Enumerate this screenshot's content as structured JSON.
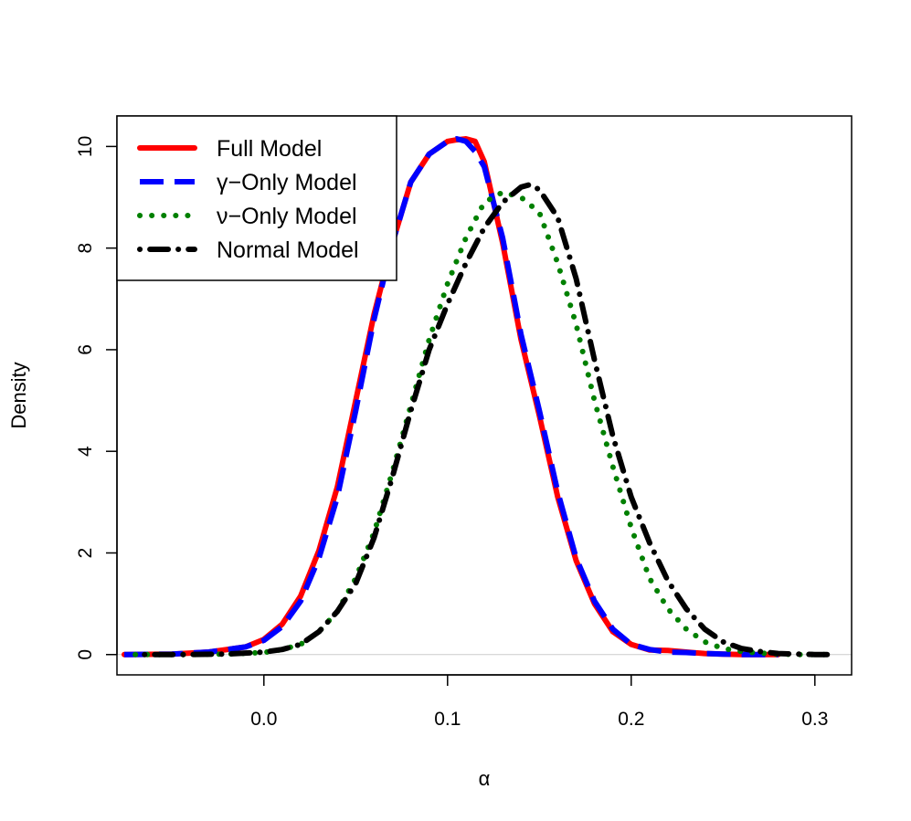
{
  "chart_data": {
    "type": "line",
    "title": "",
    "xlabel": "α",
    "ylabel": "Density",
    "xlim": [
      -0.08,
      0.32
    ],
    "ylim": [
      -0.4,
      10.6
    ],
    "x_ticks": [
      "0.0",
      "0.1",
      "0.2",
      "0.3"
    ],
    "y_ticks": [
      "0",
      "2",
      "4",
      "6",
      "8",
      "10"
    ],
    "grid": false,
    "legend_position": "top-left",
    "series": [
      {
        "name": "Full Model",
        "color": "#ff0000",
        "style": "solid",
        "x": [
          -0.076,
          -0.05,
          -0.03,
          -0.01,
          0.0,
          0.01,
          0.02,
          0.03,
          0.04,
          0.05,
          0.06,
          0.07,
          0.08,
          0.09,
          0.1,
          0.105,
          0.11,
          0.115,
          0.12,
          0.13,
          0.14,
          0.15,
          0.16,
          0.17,
          0.18,
          0.19,
          0.2,
          0.21,
          0.22,
          0.23,
          0.24,
          0.25,
          0.26,
          0.27,
          0.28
        ],
        "y": [
          0.0,
          0.01,
          0.05,
          0.15,
          0.3,
          0.6,
          1.15,
          2.05,
          3.3,
          5.0,
          6.7,
          8.1,
          9.3,
          9.85,
          10.1,
          10.13,
          10.15,
          10.1,
          9.7,
          8.1,
          6.2,
          4.7,
          3.1,
          1.85,
          1.0,
          0.45,
          0.2,
          0.09,
          0.08,
          0.05,
          0.02,
          0.01,
          0.0,
          0.0,
          0.0
        ]
      },
      {
        "name": "γ−Only Model",
        "color": "#0000ff",
        "style": "dashed",
        "x": [
          -0.076,
          -0.05,
          -0.03,
          -0.01,
          0.0,
          0.01,
          0.02,
          0.03,
          0.04,
          0.05,
          0.06,
          0.07,
          0.08,
          0.09,
          0.1,
          0.105,
          0.11,
          0.115,
          0.12,
          0.13,
          0.14,
          0.15,
          0.16,
          0.17,
          0.18,
          0.19,
          0.2,
          0.21,
          0.22,
          0.23,
          0.24,
          0.25,
          0.26,
          0.27,
          0.28
        ],
        "y": [
          0.0,
          0.01,
          0.05,
          0.15,
          0.28,
          0.55,
          1.05,
          1.9,
          3.1,
          4.8,
          6.6,
          8.1,
          9.3,
          9.85,
          10.1,
          10.15,
          10.1,
          9.9,
          9.6,
          8.2,
          6.3,
          4.8,
          3.2,
          1.9,
          1.05,
          0.5,
          0.2,
          0.1,
          0.05,
          0.04,
          0.02,
          0.01,
          0.0,
          0.0,
          0.0
        ]
      },
      {
        "name": "ν−Only Model",
        "color": "#008000",
        "style": "dotted",
        "x": [
          -0.07,
          -0.04,
          -0.02,
          0.0,
          0.01,
          0.02,
          0.03,
          0.04,
          0.05,
          0.06,
          0.07,
          0.08,
          0.09,
          0.1,
          0.11,
          0.12,
          0.13,
          0.14,
          0.15,
          0.16,
          0.17,
          0.18,
          0.19,
          0.2,
          0.21,
          0.22,
          0.23,
          0.24,
          0.25,
          0.26,
          0.27,
          0.28,
          0.29,
          0.3,
          0.31
        ],
        "y": [
          0.0,
          0.0,
          0.01,
          0.04,
          0.1,
          0.2,
          0.45,
          0.85,
          1.5,
          2.4,
          3.6,
          4.9,
          6.2,
          7.3,
          8.2,
          8.9,
          9.1,
          9.0,
          8.7,
          7.7,
          6.5,
          5.0,
          3.7,
          2.5,
          1.5,
          0.9,
          0.5,
          0.25,
          0.12,
          0.06,
          0.03,
          0.01,
          0.0,
          0.0,
          0.0
        ]
      },
      {
        "name": "Normal Model",
        "color": "#000000",
        "style": "dotdash",
        "x": [
          -0.065,
          -0.04,
          -0.02,
          0.0,
          0.01,
          0.02,
          0.03,
          0.04,
          0.05,
          0.06,
          0.07,
          0.08,
          0.09,
          0.1,
          0.11,
          0.12,
          0.13,
          0.14,
          0.145,
          0.15,
          0.16,
          0.17,
          0.18,
          0.19,
          0.2,
          0.21,
          0.22,
          0.23,
          0.24,
          0.25,
          0.26,
          0.27,
          0.28,
          0.29,
          0.3,
          0.312
        ],
        "y": [
          0.0,
          0.0,
          0.01,
          0.05,
          0.1,
          0.2,
          0.45,
          0.85,
          1.4,
          2.3,
          3.5,
          4.8,
          6.0,
          6.9,
          7.7,
          8.4,
          8.9,
          9.2,
          9.25,
          9.15,
          8.6,
          7.4,
          5.8,
          4.3,
          3.1,
          2.2,
          1.45,
          0.9,
          0.5,
          0.25,
          0.12,
          0.06,
          0.02,
          0.01,
          0.0,
          0.0
        ]
      }
    ]
  }
}
